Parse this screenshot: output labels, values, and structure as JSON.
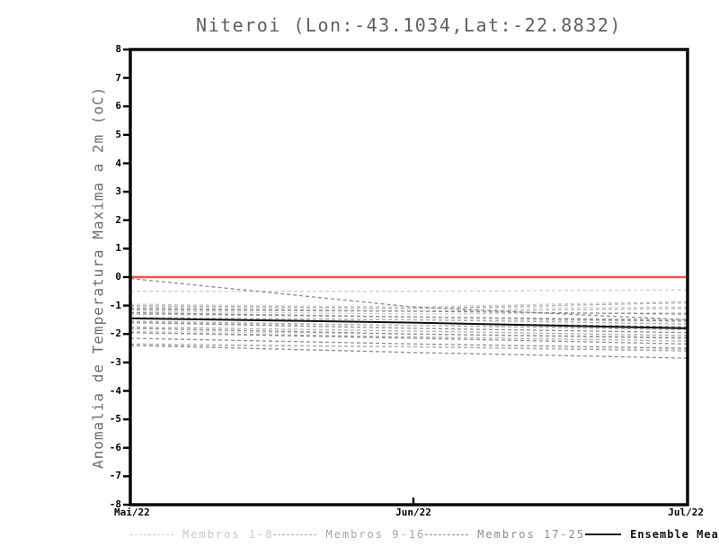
{
  "chart_data": {
    "type": "line",
    "title": "Niteroi (Lon:-43.1034,Lat:-22.8832)",
    "ylabel": "Anomalia de Temperatura Maxima a 2m (oC)",
    "xlabel": "",
    "ylim": [
      -8,
      8
    ],
    "y_ticks": [
      8,
      7,
      6,
      5,
      4,
      3,
      2,
      1,
      0,
      -1,
      -2,
      -3,
      -4,
      -5,
      -6,
      -7,
      -8
    ],
    "x_ticks": [
      {
        "label": "Mai/22",
        "frac": 0.0
      },
      {
        "label": "Jun/22",
        "frac": 0.508
      },
      {
        "label": "Jul/22",
        "frac": 1.0
      }
    ],
    "x": [
      "Mai/22",
      "Jun/22",
      "Jul/22"
    ],
    "grid": false,
    "legend_position": "bottom",
    "frame_color": "#000000",
    "zero_line": {
      "value": 0,
      "color": "#f2524d"
    },
    "groups": [
      {
        "name": "Membros 1-8",
        "color": "#d0d0d0",
        "label_color": "#c7c7c7",
        "style": "dashed"
      },
      {
        "name": "Membros 9-16",
        "color": "#aeaeae",
        "label_color": "#a5a5a5",
        "style": "dashed"
      },
      {
        "name": "Membros 17-25",
        "color": "#8c8c8c",
        "label_color": "#8c8c8c",
        "style": "dashed"
      },
      {
        "name": "Ensemble Mean",
        "color": "#111111",
        "label_color": "#111111",
        "style": "solid"
      }
    ],
    "series": [
      {
        "group": 0,
        "values": [
          -0.5,
          -0.5,
          -0.45
        ]
      },
      {
        "group": 0,
        "values": [
          -0.95,
          -1.05,
          -0.85
        ]
      },
      {
        "group": 0,
        "values": [
          -1.05,
          -1.1,
          -1.05
        ]
      },
      {
        "group": 0,
        "values": [
          -1.2,
          -1.3,
          -1.25
        ]
      },
      {
        "group": 0,
        "values": [
          -1.4,
          -1.5,
          -1.55
        ]
      },
      {
        "group": 0,
        "values": [
          -1.6,
          -1.7,
          -1.8
        ]
      },
      {
        "group": 0,
        "values": [
          -1.9,
          -2.0,
          -2.1
        ]
      },
      {
        "group": 0,
        "values": [
          -2.4,
          -2.45,
          -2.55
        ]
      },
      {
        "group": 1,
        "values": [
          -1.0,
          -1.1,
          -0.9
        ]
      },
      {
        "group": 1,
        "values": [
          -1.15,
          -1.2,
          -1.1
        ]
      },
      {
        "group": 1,
        "values": [
          -1.3,
          -1.4,
          -1.5
        ]
      },
      {
        "group": 1,
        "values": [
          -1.45,
          -1.5,
          -1.65
        ]
      },
      {
        "group": 1,
        "values": [
          -1.55,
          -1.7,
          -1.85
        ]
      },
      {
        "group": 1,
        "values": [
          -1.75,
          -1.9,
          -2.05
        ]
      },
      {
        "group": 1,
        "values": [
          -1.95,
          -2.1,
          -2.25
        ]
      },
      {
        "group": 1,
        "values": [
          -2.35,
          -2.45,
          -2.6
        ]
      },
      {
        "group": 2,
        "values": [
          -0.05,
          -1.05,
          -1.5
        ]
      },
      {
        "group": 2,
        "values": [
          -1.1,
          -1.2,
          -1.3
        ]
      },
      {
        "group": 2,
        "values": [
          -1.25,
          -1.4,
          -1.55
        ]
      },
      {
        "group": 2,
        "values": [
          -1.45,
          -1.6,
          -1.75
        ]
      },
      {
        "group": 2,
        "values": [
          -1.6,
          -1.8,
          -1.95
        ]
      },
      {
        "group": 2,
        "values": [
          -1.8,
          -2.0,
          -2.15
        ]
      },
      {
        "group": 2,
        "values": [
          -1.95,
          -2.15,
          -2.35
        ]
      },
      {
        "group": 2,
        "values": [
          -2.15,
          -2.35,
          -2.5
        ]
      },
      {
        "group": 2,
        "values": [
          -2.4,
          -2.65,
          -2.85
        ]
      },
      {
        "group": 3,
        "values": [
          -1.45,
          -1.6,
          -1.8
        ]
      }
    ]
  }
}
